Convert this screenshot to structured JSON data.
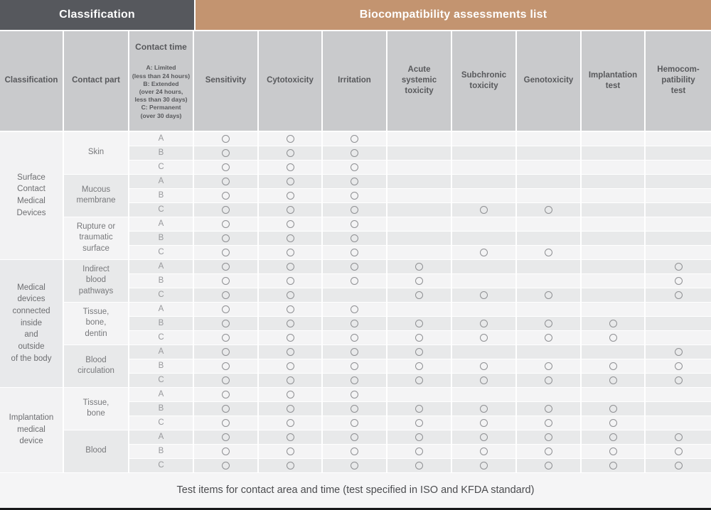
{
  "banner": {
    "left": "Classification",
    "right": "Biocompatibility assessments list"
  },
  "colors": {
    "banner_dark": "#56585d",
    "banner_tan": "#c39470",
    "header_bg": "#c9cacc",
    "stripe_light": "#f4f4f5",
    "stripe_dark": "#e8e9ea",
    "circle_ring": "#8f9093"
  },
  "columns": {
    "classification": "Classification",
    "contact_part": "Contact part",
    "contact_time_title": "Contact time",
    "contact_time_desc": "A: Limited\n(less than 24 hours)\nB: Extended\n(over 24 hours,\nless than 30 days)\nC: Permanent\n(over 30 days)",
    "tests": [
      "Sensitivity",
      "Cytotoxicity",
      "Irritation",
      "Acute\nsystemic\ntoxicity",
      "Subchronic\ntoxicity",
      "Genotoxicity",
      "Implantation\ntest",
      "Hemocom-\npatibility\ntest"
    ]
  },
  "table": {
    "groups": [
      {
        "classification": "Surface\nContact\nMedical\nDevices",
        "parts": [
          {
            "name": "Skin",
            "rows": [
              {
                "time": "A",
                "tests": [
                  1,
                  1,
                  1,
                  0,
                  0,
                  0,
                  0,
                  0
                ]
              },
              {
                "time": "B",
                "tests": [
                  1,
                  1,
                  1,
                  0,
                  0,
                  0,
                  0,
                  0
                ]
              },
              {
                "time": "C",
                "tests": [
                  1,
                  1,
                  1,
                  0,
                  0,
                  0,
                  0,
                  0
                ]
              }
            ]
          },
          {
            "name": "Mucous\nmembrane",
            "rows": [
              {
                "time": "A",
                "tests": [
                  1,
                  1,
                  1,
                  0,
                  0,
                  0,
                  0,
                  0
                ]
              },
              {
                "time": "B",
                "tests": [
                  1,
                  1,
                  1,
                  0,
                  0,
                  0,
                  0,
                  0
                ]
              },
              {
                "time": "C",
                "tests": [
                  1,
                  1,
                  1,
                  0,
                  1,
                  1,
                  0,
                  0
                ]
              }
            ]
          },
          {
            "name": "Rupture or\ntraumatic\nsurface",
            "rows": [
              {
                "time": "A",
                "tests": [
                  1,
                  1,
                  1,
                  0,
                  0,
                  0,
                  0,
                  0
                ]
              },
              {
                "time": "B",
                "tests": [
                  1,
                  1,
                  1,
                  0,
                  0,
                  0,
                  0,
                  0
                ]
              },
              {
                "time": "C",
                "tests": [
                  1,
                  1,
                  1,
                  0,
                  1,
                  1,
                  0,
                  0
                ]
              }
            ]
          }
        ]
      },
      {
        "classification": "Medical\ndevices\nconnected\ninside\nand\noutside\nof the body",
        "parts": [
          {
            "name": "Indirect\nblood\npathways",
            "rows": [
              {
                "time": "A",
                "tests": [
                  1,
                  1,
                  1,
                  1,
                  0,
                  0,
                  0,
                  1
                ]
              },
              {
                "time": "B",
                "tests": [
                  1,
                  1,
                  1,
                  1,
                  0,
                  0,
                  0,
                  1
                ]
              },
              {
                "time": "C",
                "tests": [
                  1,
                  1,
                  0,
                  1,
                  1,
                  1,
                  0,
                  1
                ]
              }
            ]
          },
          {
            "name": "Tissue,\nbone,\ndentin",
            "rows": [
              {
                "time": "A",
                "tests": [
                  1,
                  1,
                  1,
                  0,
                  0,
                  0,
                  0,
                  0
                ]
              },
              {
                "time": "B",
                "tests": [
                  1,
                  1,
                  1,
                  1,
                  1,
                  1,
                  1,
                  0
                ]
              },
              {
                "time": "C",
                "tests": [
                  1,
                  1,
                  1,
                  1,
                  1,
                  1,
                  1,
                  0
                ]
              }
            ]
          },
          {
            "name": "Blood\ncirculation",
            "rows": [
              {
                "time": "A",
                "tests": [
                  1,
                  1,
                  1,
                  1,
                  0,
                  0,
                  0,
                  1
                ]
              },
              {
                "time": "B",
                "tests": [
                  1,
                  1,
                  1,
                  1,
                  1,
                  1,
                  1,
                  1
                ]
              },
              {
                "time": "C",
                "tests": [
                  1,
                  1,
                  1,
                  1,
                  1,
                  1,
                  1,
                  1
                ]
              }
            ]
          }
        ]
      },
      {
        "classification": "Implantation\nmedical\ndevice",
        "parts": [
          {
            "name": "Tissue,\nbone",
            "rows": [
              {
                "time": "A",
                "tests": [
                  1,
                  1,
                  1,
                  0,
                  0,
                  0,
                  0,
                  0
                ]
              },
              {
                "time": "B",
                "tests": [
                  1,
                  1,
                  1,
                  1,
                  1,
                  1,
                  1,
                  0
                ]
              },
              {
                "time": "C",
                "tests": [
                  1,
                  1,
                  1,
                  1,
                  1,
                  1,
                  1,
                  0
                ]
              }
            ]
          },
          {
            "name": "Blood",
            "rows": [
              {
                "time": "A",
                "tests": [
                  1,
                  1,
                  1,
                  1,
                  1,
                  1,
                  1,
                  1
                ]
              },
              {
                "time": "B",
                "tests": [
                  1,
                  1,
                  1,
                  1,
                  1,
                  1,
                  1,
                  1
                ]
              },
              {
                "time": "C",
                "tests": [
                  1,
                  1,
                  1,
                  1,
                  1,
                  1,
                  1,
                  1
                ]
              }
            ]
          }
        ]
      }
    ]
  },
  "footer": {
    "note": "Test items for contact area and time (test specified in ISO and KFDA standard)"
  }
}
